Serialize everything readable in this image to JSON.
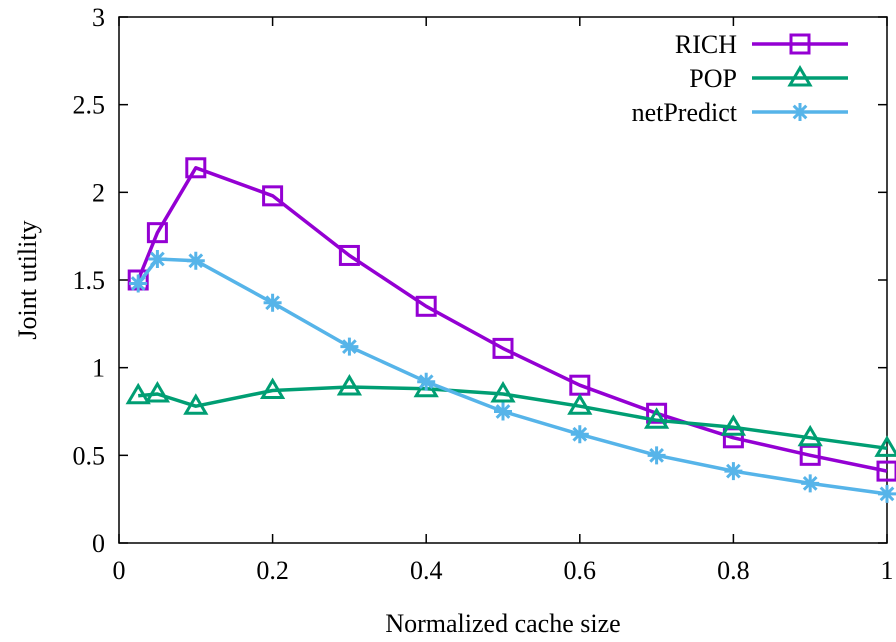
{
  "chart_data": {
    "type": "line",
    "xlabel": "Normalized cache size",
    "ylabel": "Joint utility",
    "xlim": [
      0,
      1
    ],
    "ylim": [
      0,
      3
    ],
    "xticks": [
      0,
      0.2,
      0.4,
      0.6,
      0.8,
      1
    ],
    "xtick_labels": [
      "0",
      "0.2",
      "0.4",
      "0.6",
      "0.8",
      "1"
    ],
    "yticks": [
      0,
      0.5,
      1,
      1.5,
      2,
      2.5,
      3
    ],
    "ytick_labels": [
      "0",
      "0.5",
      "1",
      "1.5",
      "2",
      "2.5",
      "3"
    ],
    "grid": false,
    "legend_position": "top-right",
    "series": [
      {
        "name": "RICH",
        "color": "#9400d3",
        "marker": "square",
        "x": [
          0.025,
          0.05,
          0.1,
          0.2,
          0.3,
          0.4,
          0.5,
          0.6,
          0.7,
          0.8,
          0.9,
          1.0
        ],
        "values": [
          1.5,
          1.77,
          2.14,
          1.98,
          1.64,
          1.35,
          1.11,
          0.9,
          0.74,
          0.6,
          0.5,
          0.41
        ]
      },
      {
        "name": "POP",
        "color": "#009e73",
        "marker": "triangle",
        "x": [
          0.025,
          0.05,
          0.1,
          0.2,
          0.3,
          0.4,
          0.5,
          0.6,
          0.7,
          0.8,
          0.9,
          1.0
        ],
        "values": [
          0.84,
          0.85,
          0.78,
          0.87,
          0.89,
          0.88,
          0.85,
          0.78,
          0.7,
          0.66,
          0.6,
          0.54
        ]
      },
      {
        "name": "netPredict",
        "color": "#56b4e9",
        "marker": "star",
        "x": [
          0.025,
          0.05,
          0.1,
          0.2,
          0.3,
          0.4,
          0.5,
          0.6,
          0.7,
          0.8,
          0.9,
          1.0
        ],
        "values": [
          1.48,
          1.62,
          1.61,
          1.37,
          1.12,
          0.92,
          0.75,
          0.62,
          0.5,
          0.41,
          0.34,
          0.28
        ]
      }
    ]
  }
}
